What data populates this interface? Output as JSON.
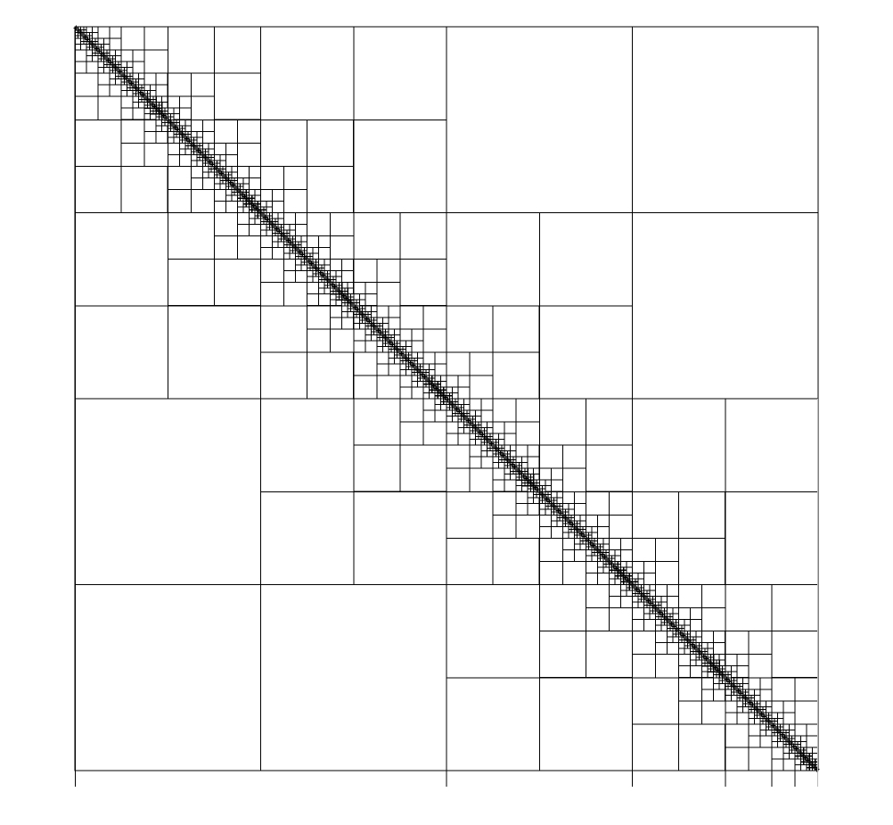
{
  "diagram": {
    "kind": "hierarchical-matrix-partition",
    "line_color": "#000000",
    "background": "#ffffff",
    "boundary_color": "#bbbbbb",
    "min_block_fraction": 0.0039,
    "admissibility_eta": 1.0,
    "diagonal_marker": "+"
  }
}
